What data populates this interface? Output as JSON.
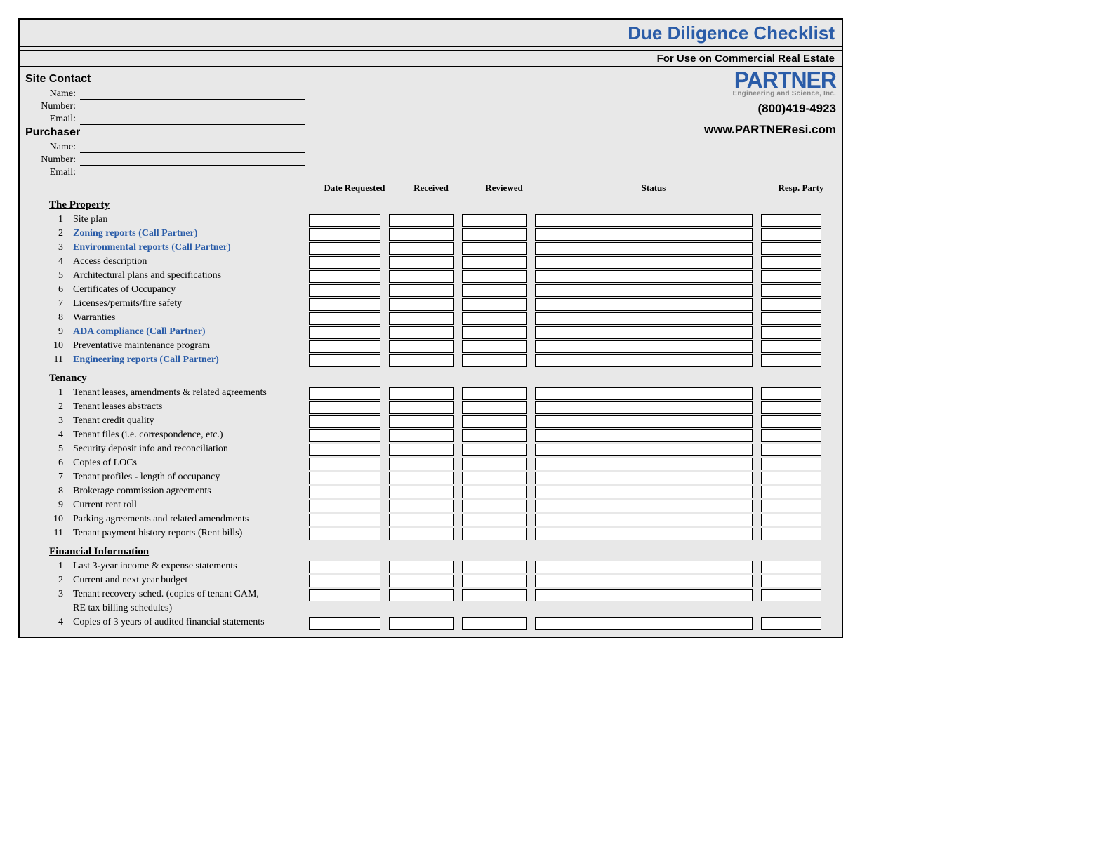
{
  "title": "Due Diligence Checklist",
  "subtitle": "For Use on Commercial Real Estate",
  "brand": {
    "name": "PARTNER",
    "tagline": "Engineering and Science, Inc.",
    "phone": "(800)419-4923",
    "url": "www.PARTNEResi.com"
  },
  "colors": {
    "accent": "#2a5ca8",
    "page_bg": "#e8e8e8",
    "cell_bg": "#ffffff",
    "border": "#000000"
  },
  "contact_sections": [
    {
      "heading": "Site Contact",
      "fields": [
        "Name:",
        "Number:",
        "Email:"
      ]
    },
    {
      "heading": "Purchaser",
      "fields": [
        "Name:",
        "Number:",
        "Email:"
      ]
    }
  ],
  "columns": {
    "date_requested": "Date Requested",
    "received": "Received",
    "reviewed": "Reviewed",
    "status": "Status",
    "resp_party": "Resp. Party"
  },
  "groups": [
    {
      "title": "The Property",
      "items": [
        {
          "n": 1,
          "text": "Site plan",
          "linked": false
        },
        {
          "n": 2,
          "text": "Zoning reports (Call Partner)",
          "linked": true
        },
        {
          "n": 3,
          "text": "Environmental reports (Call Partner)",
          "linked": true
        },
        {
          "n": 4,
          "text": "Access description",
          "linked": false
        },
        {
          "n": 5,
          "text": "Architectural plans and specifications",
          "linked": false
        },
        {
          "n": 6,
          "text": "Certificates of Occupancy",
          "linked": false
        },
        {
          "n": 7,
          "text": "Licenses/permits/fire safety",
          "linked": false
        },
        {
          "n": 8,
          "text": "Warranties",
          "linked": false
        },
        {
          "n": 9,
          "text": "ADA compliance (Call Partner)",
          "linked": true
        },
        {
          "n": 10,
          "text": "Preventative maintenance program",
          "linked": false
        },
        {
          "n": 11,
          "text": "Engineering reports (Call Partner)",
          "linked": true
        }
      ]
    },
    {
      "title": "Tenancy",
      "items": [
        {
          "n": 1,
          "text": "Tenant leases, amendments & related agreements",
          "linked": false
        },
        {
          "n": 2,
          "text": "Tenant leases abstracts",
          "linked": false
        },
        {
          "n": 3,
          "text": "Tenant credit quality",
          "linked": false
        },
        {
          "n": 4,
          "text": "Tenant files (i.e. correspondence, etc.)",
          "linked": false
        },
        {
          "n": 5,
          "text": "Security deposit info and reconciliation",
          "linked": false
        },
        {
          "n": 6,
          "text": "Copies of LOCs",
          "linked": false
        },
        {
          "n": 7,
          "text": "Tenant profiles - length of occupancy",
          "linked": false
        },
        {
          "n": 8,
          "text": "Brokerage commission agreements",
          "linked": false
        },
        {
          "n": 9,
          "text": "Current rent roll",
          "linked": false
        },
        {
          "n": 10,
          "text": "Parking agreements and related amendments",
          "linked": false
        },
        {
          "n": 11,
          "text": "Tenant payment history reports (Rent bills)",
          "linked": false
        }
      ]
    },
    {
      "title": "Financial Information",
      "items": [
        {
          "n": 1,
          "text": "Last 3-year income & expense statements",
          "linked": false
        },
        {
          "n": 2,
          "text": "Current and next year budget",
          "linked": false
        },
        {
          "n": 3,
          "text": "Tenant recovery sched. (copies of tenant CAM, RE tax billing schedules)",
          "linked": false,
          "twoLine": true
        },
        {
          "n": 4,
          "text": "Copies of 3 years of audited financial statements",
          "linked": false
        }
      ]
    }
  ]
}
